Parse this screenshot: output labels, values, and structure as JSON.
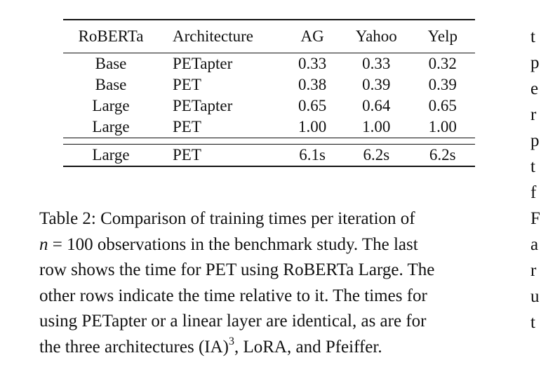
{
  "table": {
    "headers": [
      "RoBERTa",
      "Architecture",
      "AG",
      "Yahoo",
      "Yelp"
    ],
    "rows": [
      [
        "Base",
        "PETapter",
        "0.33",
        "0.33",
        "0.32"
      ],
      [
        "Base",
        "PET",
        "0.38",
        "0.39",
        "0.39"
      ],
      [
        "Large",
        "PETapter",
        "0.65",
        "0.64",
        "0.65"
      ],
      [
        "Large",
        "PET",
        "1.00",
        "1.00",
        "1.00"
      ]
    ],
    "summary_row": [
      "Large",
      "PET",
      "6.1s",
      "6.2s",
      "6.2s"
    ]
  },
  "caption": {
    "line1": "Table 2: Comparison of training times per iteration of",
    "line2_var": "n",
    "line2_eq": " = 100",
    "line2_rest": " observations in the benchmark study. The last",
    "line3": "row shows the time for PET using RoBERTa Large. The",
    "line4": "other rows indicate the time relative to it. The times for",
    "line5": "using PETapter or a linear layer are identical, as are for",
    "line6_pre": "the three architectures (IA)",
    "line6_exp": "3",
    "line6_post": ", LoRA, and Pfeiffer."
  },
  "right_column_fragments": [
    "t",
    "p",
    "e",
    "r",
    "p",
    "t",
    "f",
    "F",
    "a",
    "r",
    "u",
    "t"
  ]
}
